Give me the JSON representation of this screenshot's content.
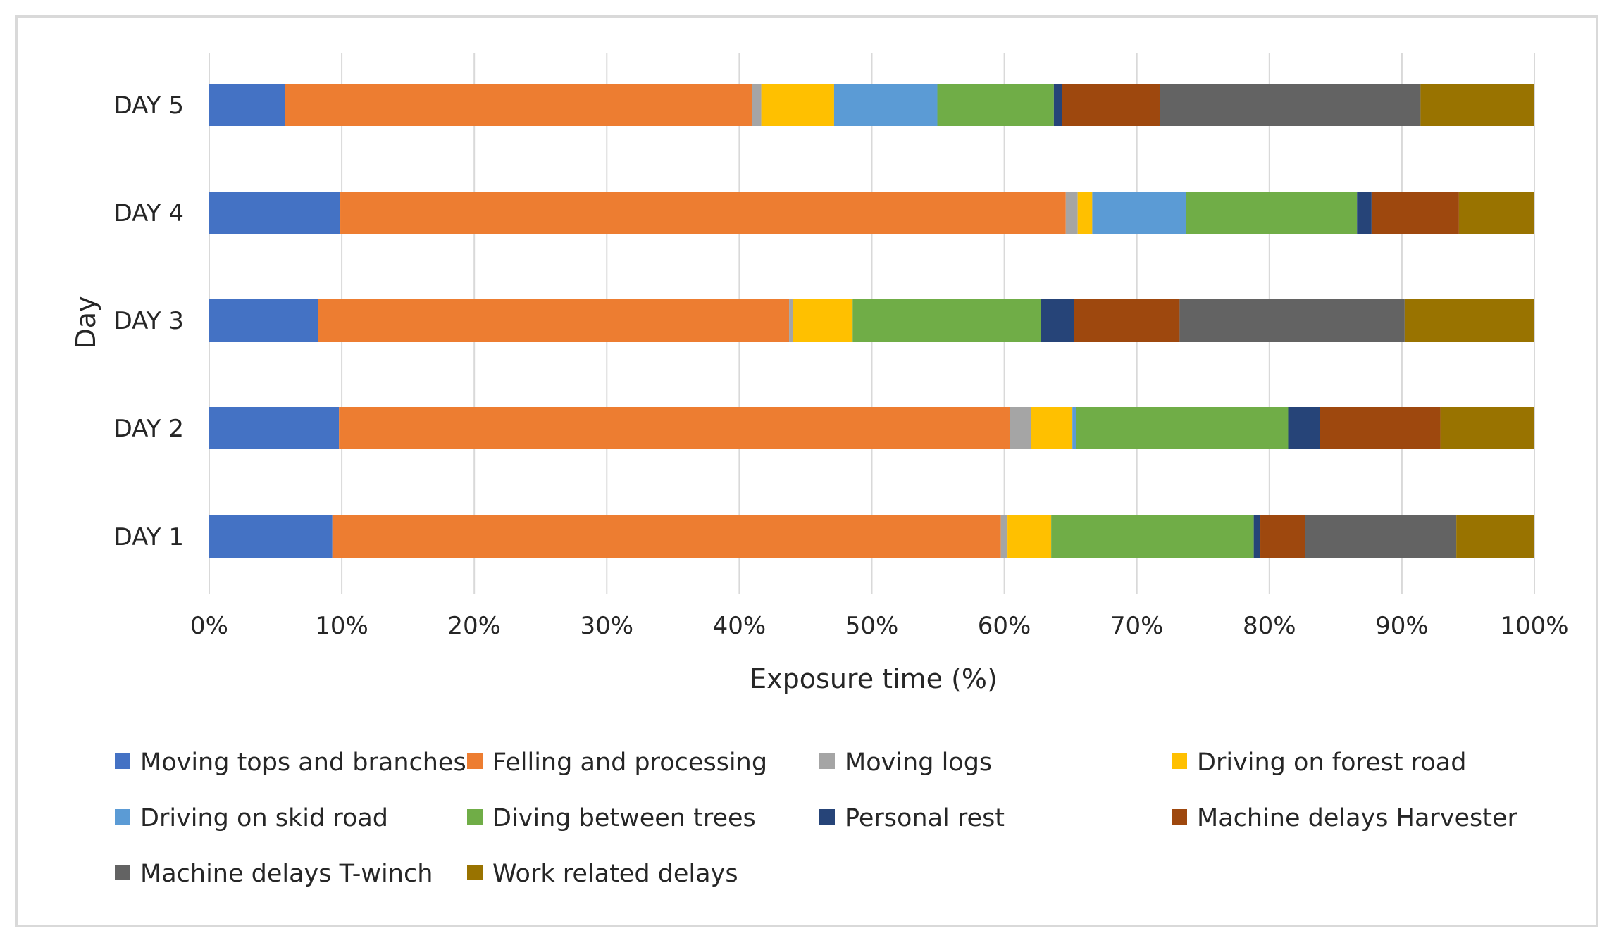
{
  "chart_data": {
    "type": "bar",
    "orientation": "horizontal",
    "stacked": "percent",
    "title": "",
    "xlabel": "Exposure time (%)",
    "ylabel": "Day",
    "xlim": [
      0,
      100
    ],
    "x_ticks": [
      "0%",
      "10%",
      "20%",
      "30%",
      "40%",
      "50%",
      "60%",
      "70%",
      "80%",
      "90%",
      "100%"
    ],
    "categories": [
      "DAY 1",
      "DAY 2",
      "DAY 3",
      "DAY 4",
      "DAY 5"
    ],
    "grid": true,
    "legend_position": "bottom",
    "series": [
      {
        "name": "Moving tops and branches",
        "color": "#4472c4",
        "values": [
          9.3,
          9.8,
          8.2,
          9.9,
          5.7
        ]
      },
      {
        "name": "Felling and processing",
        "color": "#ed7d31",
        "values": [
          50.5,
          50.7,
          35.6,
          54.8,
          35.3
        ]
      },
      {
        "name": "Moving logs",
        "color": "#a5a5a5",
        "values": [
          0.5,
          1.6,
          0.3,
          0.9,
          0.7
        ]
      },
      {
        "name": "Driving on forest road",
        "color": "#ffc000",
        "values": [
          3.3,
          3.1,
          4.5,
          1.1,
          5.5
        ]
      },
      {
        "name": "Driving on skid road",
        "color": "#5b9bd5",
        "values": [
          0,
          0.3,
          0,
          7.1,
          7.8
        ]
      },
      {
        "name": "Diving between trees",
        "color": "#70ad47",
        "values": [
          15.3,
          16.0,
          14.2,
          12.9,
          8.8
        ]
      },
      {
        "name": "Personal rest",
        "color": "#264478",
        "values": [
          0.5,
          2.4,
          2.5,
          1.1,
          0.6
        ]
      },
      {
        "name": "Machine delays Harvester",
        "color": "#9e480e",
        "values": [
          3.4,
          9.1,
          8.0,
          6.6,
          7.4
        ]
      },
      {
        "name": "Machine delays T-winch",
        "color": "#636363",
        "values": [
          11.4,
          0,
          17.0,
          0,
          19.7
        ]
      },
      {
        "name": "Work related delays",
        "color": "#997300",
        "values": [
          5.9,
          7.1,
          9.8,
          5.7,
          8.6
        ]
      }
    ]
  }
}
